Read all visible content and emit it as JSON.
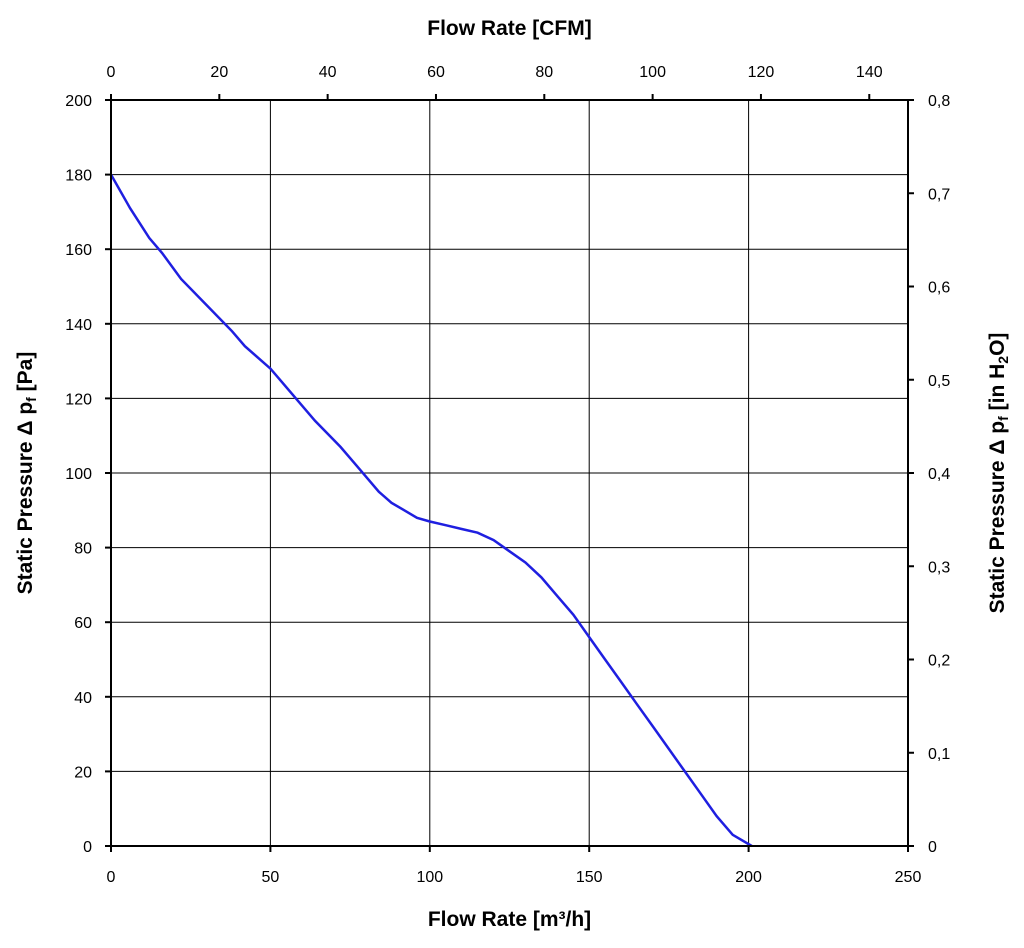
{
  "chart_data": {
    "type": "line",
    "title": "",
    "xlabel": "Flow Rate [m³/h]",
    "x2label": "Flow Rate [CFM]",
    "ylabel": {
      "prefix": "Static Pressure Δ p",
      "sub": "f",
      "suffix": " [Pa]"
    },
    "y2label": {
      "prefix": "Static Pressure Δ p",
      "sub": "f",
      "suffix": " [in H",
      "sub2": "2",
      "suffix2": "O]"
    },
    "xlim": [
      0,
      250
    ],
    "ylim": [
      0,
      200
    ],
    "x2lim": [
      0,
      147.15
    ],
    "y2lim": [
      0,
      0.8
    ],
    "xticks": [
      "0",
      "50",
      "100",
      "150",
      "200",
      "250"
    ],
    "yticks": [
      "0",
      "20",
      "40",
      "60",
      "80",
      "100",
      "120",
      "140",
      "160",
      "180",
      "200"
    ],
    "x2ticks": [
      "0",
      "20",
      "40",
      "60",
      "80",
      "100",
      "120",
      "140"
    ],
    "y2ticks": [
      "0",
      "0,1",
      "0,2",
      "0,3",
      "0,4",
      "0,5",
      "0,6",
      "0,7",
      "0,8"
    ],
    "grid": true,
    "line_color": "#1f1fe0",
    "series": [
      {
        "x": [
          0,
          6,
          12,
          16,
          22,
          30,
          38,
          42,
          50,
          56,
          64,
          72,
          76,
          80,
          84,
          88,
          92,
          96,
          100,
          105,
          110,
          115,
          120,
          125,
          130,
          135,
          140,
          145,
          150,
          155,
          160,
          165,
          170,
          175,
          180,
          185,
          190,
          195,
          201
        ],
        "y": [
          180,
          171,
          163,
          159,
          152,
          145,
          138,
          134,
          128,
          122,
          114,
          107,
          103,
          99,
          95,
          92,
          90,
          88,
          87,
          86,
          85,
          84,
          82,
          79,
          76,
          72,
          67,
          62,
          56,
          50,
          44,
          38,
          32,
          26,
          20,
          14,
          8,
          3,
          0
        ]
      }
    ]
  }
}
